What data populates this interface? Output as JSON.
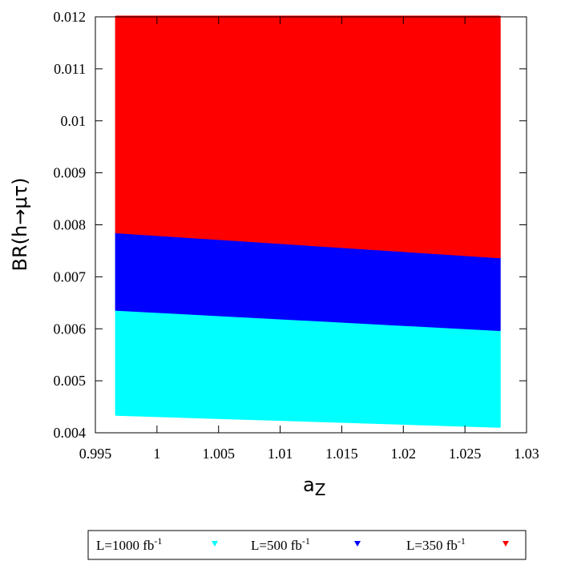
{
  "chart_data": {
    "type": "area",
    "title": "",
    "xlabel": "a",
    "xlabel_sub": "Z",
    "ylabel": "BR(h→μτ)",
    "xlim": [
      0.995,
      1.03
    ],
    "ylim": [
      0.004,
      0.012
    ],
    "x_ticks": [
      {
        "value": 0.995,
        "label": "0.995"
      },
      {
        "value": 1.0,
        "label": "1"
      },
      {
        "value": 1.005,
        "label": "1.005"
      },
      {
        "value": 1.01,
        "label": "1.01"
      },
      {
        "value": 1.015,
        "label": "1.015"
      },
      {
        "value": 1.02,
        "label": "1.02"
      },
      {
        "value": 1.025,
        "label": "1.025"
      },
      {
        "value": 1.03,
        "label": "1.03"
      }
    ],
    "y_ticks": [
      {
        "value": 0.004,
        "label": "0.004"
      },
      {
        "value": 0.005,
        "label": "0.005"
      },
      {
        "value": 0.006,
        "label": "0.006"
      },
      {
        "value": 0.007,
        "label": "0.007"
      },
      {
        "value": 0.008,
        "label": "0.008"
      },
      {
        "value": 0.009,
        "label": "0.009"
      },
      {
        "value": 0.01,
        "label": "0.01"
      },
      {
        "value": 0.011,
        "label": "0.011"
      },
      {
        "value": 0.012,
        "label": "0.012"
      }
    ],
    "x_range": [
      0.9967,
      1.0278
    ],
    "series": [
      {
        "name": "L=1000 fb",
        "sup": "-1",
        "color": "#00ffff",
        "lower": [
          0.00435,
          0.00412
        ],
        "upper": [
          0.00637,
          0.00598
        ]
      },
      {
        "name": "L=500 fb",
        "sup": "-1",
        "color": "#0000ff",
        "lower": [
          0.00637,
          0.00598
        ],
        "upper": [
          0.00786,
          0.00738
        ]
      },
      {
        "name": "L=350 fb",
        "sup": "-1",
        "color": "#ff0000",
        "lower": [
          0.00786,
          0.00738
        ],
        "upper": [
          0.012,
          0.012
        ]
      }
    ],
    "grid": false,
    "legend_position": "bottom"
  }
}
